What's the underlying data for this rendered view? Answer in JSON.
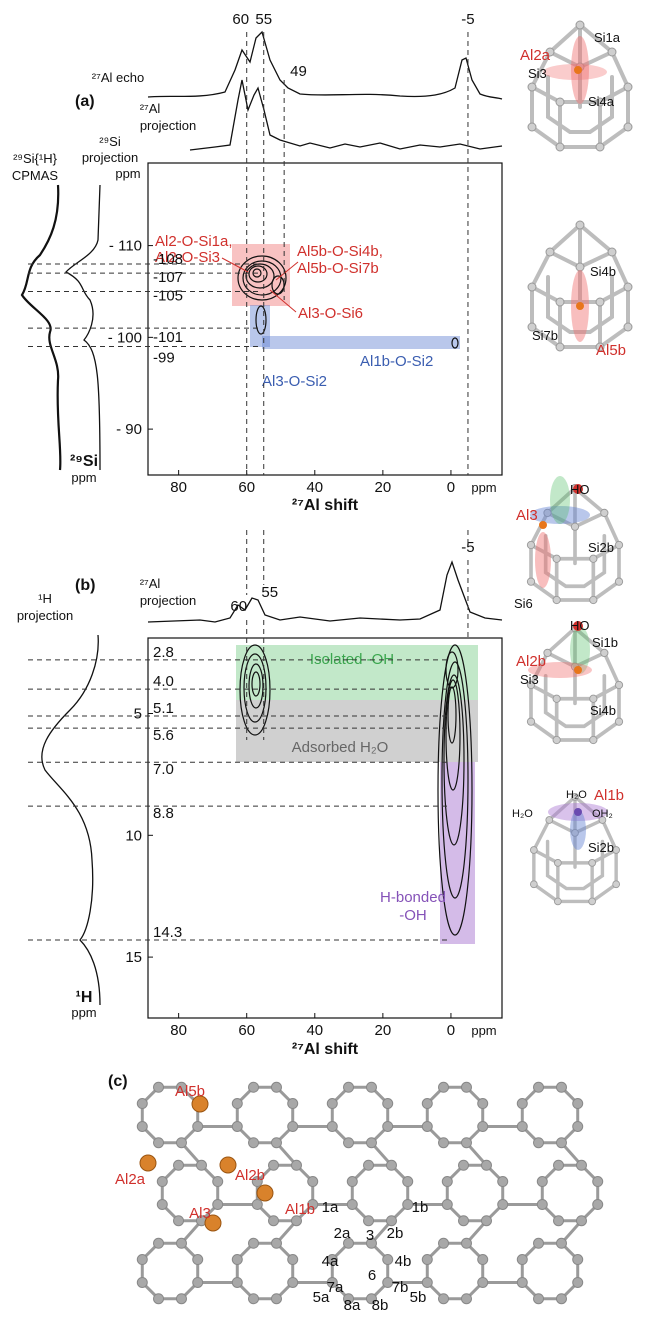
{
  "panel_a": {
    "label": "(a)",
    "top_trace_labels": [
      "²⁷Al echo",
      "²⁷Al",
      "projection"
    ],
    "left_trace_labels": [
      "²⁹Si{¹H}",
      "CPMAS",
      "²⁹Si",
      "projection"
    ],
    "left_unit": "ppm",
    "peaks": [
      60,
      55,
      49,
      -5
    ],
    "xlim": [
      89,
      -15
    ],
    "xticks": [
      80,
      60,
      40,
      20,
      0
    ],
    "x_unit": "ppm",
    "x_title": "²⁷Al shift",
    "ylim": [
      -119,
      -85
    ],
    "yticks": [
      {
        "value": -110,
        "label": "- 110"
      },
      {
        "value": -100,
        "label": "- 100"
      },
      {
        "value": -90,
        "label": "- 90"
      }
    ],
    "y_title": "²⁹Si",
    "y_unit": "ppm",
    "si_shifts": [
      -108,
      -107,
      -105,
      -101,
      -99
    ],
    "annotations": {
      "al2": [
        "Al2-O-Si1a,",
        "Al2-O-Si3"
      ],
      "al5b": [
        "Al5b-O-Si4b,",
        "Al5b-O-Si7b"
      ],
      "al3_si6": "Al3-O-Si6",
      "al1b_si2": "Al1b-O-Si2",
      "al3_si2": "Al3-O-Si2"
    }
  },
  "panel_b": {
    "label": "(b)",
    "top_trace_labels": [
      "²⁷Al",
      "projection"
    ],
    "left_trace_labels": [
      "¹H",
      "projection"
    ],
    "peaks": [
      60,
      55,
      -5
    ],
    "xlim": [
      89,
      -15
    ],
    "xticks": [
      80,
      60,
      40,
      20,
      0
    ],
    "x_unit": "ppm",
    "x_title": "²⁷Al shift",
    "ylim": [
      1.9,
      17.5
    ],
    "yticks": [
      5,
      10,
      15
    ],
    "y_title": "¹H",
    "y_unit": "ppm",
    "h_shifts": [
      2.8,
      {
        "value": 4,
        "label": "4.0"
      },
      5.1,
      5.6,
      {
        "value": 7,
        "label": "7.0"
      },
      8.8,
      14.3
    ],
    "regions": {
      "isolated": "Isolated -OH",
      "adsorbed": "Adsorbed H₂O",
      "h_bonded": [
        "H-bonded",
        "-OH"
      ]
    }
  },
  "structures": [
    [
      "Al2a",
      "Si1a",
      "Si3",
      "Si4a"
    ],
    [
      "Si4b",
      "Si7b",
      "Al5b"
    ],
    [
      "HO",
      "Al3",
      "Si2b",
      "Si6"
    ],
    [
      "HO",
      "Si1b",
      "Al2b",
      "Si3",
      "Si4b"
    ],
    [
      "H₂O",
      "Al1b",
      "H₂O",
      "OH₂",
      "Si2b"
    ]
  ],
  "panel_c": {
    "label": "(c)",
    "al_sites": [
      "Al5b",
      "Al2a",
      "Al2b",
      "Al3",
      "Al1b"
    ],
    "site_numbers": [
      "1a",
      "2a",
      "3",
      "2b",
      "1b",
      "4a",
      "6",
      "4b",
      "7a",
      "7b",
      "5a",
      "8a",
      "8b",
      "5b"
    ]
  }
}
